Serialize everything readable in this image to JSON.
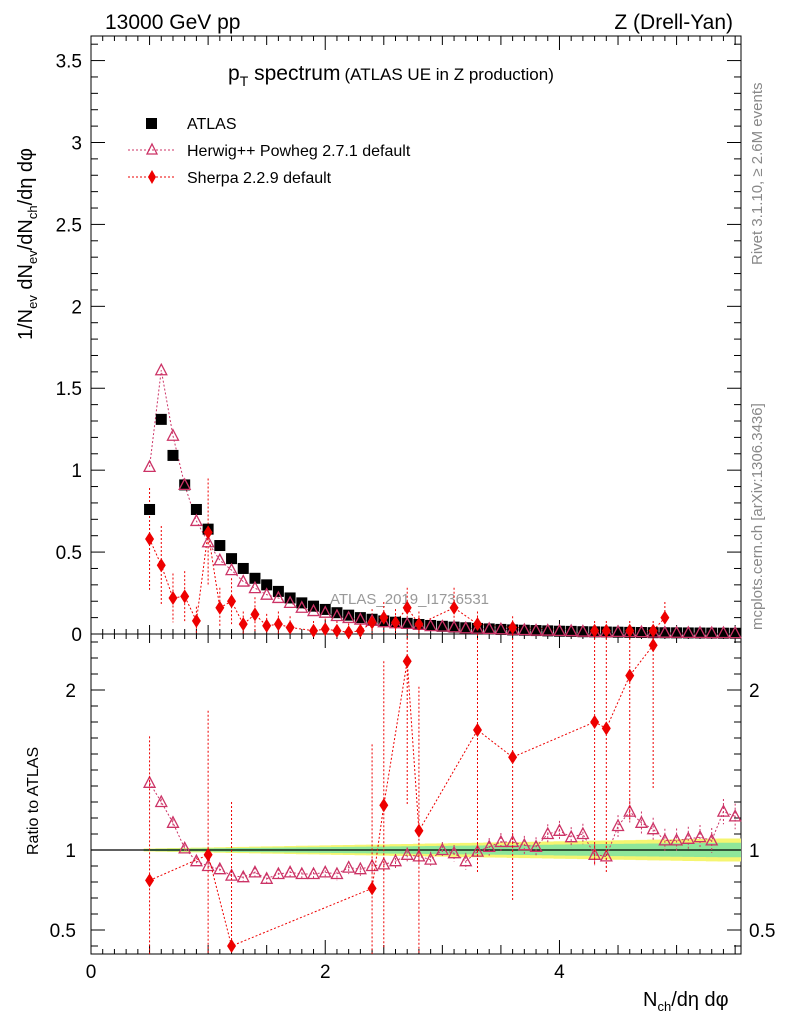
{
  "header": {
    "left": "13000 GeV pp",
    "right": "Z (Drell-Yan)"
  },
  "title": {
    "main": "p",
    "main_sub": "T",
    "main_rest": " spectrum",
    "suffix": "(ATLAS UE in Z production)"
  },
  "side_labels": {
    "rivet": "Rivet 3.1.10, ≥ 2.6M events",
    "mcplots": "mcplots.cern.ch [arXiv:1306.3436]"
  },
  "watermark": "ATLAS_2019_I1736531",
  "axes": {
    "xlabel_main": "N",
    "xlabel_sub": "ch",
    "xlabel_rest": "/dη dφ",
    "ylabel_top_parts": [
      "1/N",
      "ev",
      " dN",
      "ev",
      "/dN",
      "ch",
      "/dη dφ"
    ],
    "ylabel_bottom": "Ratio to ATLAS",
    "x_ticks": [
      "0",
      "2",
      "4"
    ],
    "y_ticks_top": [
      "0",
      "0.5",
      "1",
      "1.5",
      "2",
      "2.5",
      "3",
      "3.5"
    ],
    "y_ticks_bottom": [
      "0.5",
      "1",
      "2"
    ]
  },
  "legend": [
    {
      "label": "ATLAS",
      "color": "#000000",
      "marker": "square"
    },
    {
      "label": "Herwig++ Powheg 2.7.1 default",
      "color": "#cc3366",
      "marker": "open-triangle"
    },
    {
      "label": "Sherpa 2.2.9 default",
      "color": "#ee0000",
      "marker": "diamond"
    }
  ],
  "chart_data": [
    {
      "type": "scatter",
      "panel": "main",
      "xlim": [
        0,
        5.55
      ],
      "ylim": [
        0,
        3.65
      ],
      "series": [
        {
          "name": "ATLAS",
          "x": [
            0.5,
            0.6,
            0.7,
            0.8,
            0.9,
            1.0,
            1.1,
            1.2,
            1.3,
            1.4,
            1.5,
            1.6,
            1.7,
            1.8,
            1.9,
            2.0,
            2.1,
            2.2,
            2.3,
            2.4,
            2.5,
            2.6,
            2.7,
            2.8,
            2.9,
            3.0,
            3.1,
            3.2,
            3.3,
            3.4,
            3.5,
            3.6,
            3.7,
            3.8,
            3.9,
            4.0,
            4.1,
            4.2,
            4.3,
            4.4,
            4.5,
            4.6,
            4.7,
            4.8,
            4.9,
            5.0,
            5.1,
            5.2,
            5.3,
            5.4,
            5.5
          ],
          "y": [
            0.76,
            1.31,
            1.09,
            0.91,
            0.76,
            0.64,
            0.54,
            0.46,
            0.4,
            0.34,
            0.3,
            0.26,
            0.22,
            0.19,
            0.17,
            0.15,
            0.13,
            0.115,
            0.1,
            0.09,
            0.08,
            0.072,
            0.065,
            0.058,
            0.052,
            0.047,
            0.042,
            0.038,
            0.034,
            0.031,
            0.028,
            0.025,
            0.023,
            0.021,
            0.019,
            0.017,
            0.016,
            0.014,
            0.013,
            0.012,
            0.011,
            0.01,
            0.009,
            0.008,
            0.0075,
            0.007,
            0.0065,
            0.006,
            0.0055,
            0.005,
            0.0045
          ]
        },
        {
          "name": "Herwig++ Powheg 2.7.1 default",
          "x": [
            0.5,
            0.6,
            0.7,
            0.8,
            0.9,
            1.0,
            1.1,
            1.2,
            1.3,
            1.4,
            1.5,
            1.6,
            1.7,
            1.8,
            1.9,
            2.0,
            2.1,
            2.2,
            2.3,
            2.4,
            2.5,
            2.6,
            2.7,
            2.8,
            2.9,
            3.0,
            3.1,
            3.2,
            3.3,
            3.4,
            3.5,
            3.6,
            3.7,
            3.8,
            3.9,
            4.0,
            4.1,
            4.2,
            4.3,
            4.4,
            4.5,
            4.6,
            4.7,
            4.8,
            4.9,
            5.0,
            5.1,
            5.2,
            5.3,
            5.4,
            5.5
          ],
          "y": [
            1.02,
            1.61,
            1.21,
            0.91,
            0.69,
            0.56,
            0.45,
            0.39,
            0.32,
            0.28,
            0.24,
            0.22,
            0.19,
            0.16,
            0.14,
            0.13,
            0.11,
            0.098,
            0.088,
            0.08,
            0.072,
            0.066,
            0.062,
            0.056,
            0.048,
            0.046,
            0.041,
            0.035,
            0.033,
            0.031,
            0.029,
            0.026,
            0.024,
            0.021,
            0.021,
            0.019,
            0.018,
            0.015,
            0.012,
            0.011,
            0.013,
            0.012,
            0.011,
            0.009,
            0.008,
            0.0075,
            0.007,
            0.0065,
            0.0058,
            0.0062,
            0.0055
          ]
        },
        {
          "name": "Sherpa 2.2.9 default",
          "x": [
            0.5,
            0.6,
            0.7,
            0.8,
            0.9,
            1.0,
            1.1,
            1.2,
            1.3,
            1.4,
            1.5,
            1.6,
            1.7,
            1.9,
            2.0,
            2.1,
            2.2,
            2.3,
            2.4,
            2.5,
            2.6,
            2.7,
            2.8,
            3.1,
            3.3,
            3.6,
            4.3,
            4.4,
            4.6,
            4.8,
            4.9
          ],
          "y": [
            0.58,
            0.42,
            0.22,
            0.23,
            0.08,
            0.62,
            0.16,
            0.2,
            0.06,
            0.12,
            0.05,
            0.06,
            0.04,
            0.02,
            0.03,
            0.02,
            0.01,
            0.02,
            0.07,
            0.1,
            0.07,
            0.16,
            0.06,
            0.16,
            0.06,
            0.04,
            0.02,
            0.02,
            0.02,
            0.02,
            0.1
          ]
        }
      ]
    },
    {
      "type": "scatter",
      "panel": "ratio",
      "ylabel": "Ratio to ATLAS",
      "xlim": [
        0,
        5.55
      ],
      "ylim": [
        0.35,
        2.35
      ],
      "series": [
        {
          "name": "Herwig++ Powheg 2.7.1 default",
          "x": [
            0.5,
            0.6,
            0.7,
            0.8,
            0.9,
            1.0,
            1.1,
            1.2,
            1.3,
            1.4,
            1.5,
            1.6,
            1.7,
            1.8,
            1.9,
            2.0,
            2.1,
            2.2,
            2.3,
            2.4,
            2.5,
            2.6,
            2.7,
            2.8,
            2.9,
            3.0,
            3.1,
            3.2,
            3.3,
            3.4,
            3.5,
            3.6,
            3.7,
            3.8,
            3.9,
            4.0,
            4.1,
            4.2,
            4.3,
            4.4,
            4.5,
            4.6,
            4.7,
            4.8,
            4.9,
            5.0,
            5.1,
            5.2,
            5.3,
            5.4,
            5.5
          ],
          "y": [
            1.42,
            1.3,
            1.17,
            1.01,
            0.93,
            0.9,
            0.88,
            0.84,
            0.83,
            0.86,
            0.82,
            0.85,
            0.86,
            0.85,
            0.85,
            0.86,
            0.85,
            0.89,
            0.88,
            0.9,
            0.91,
            0.93,
            0.97,
            0.96,
            0.94,
            1.0,
            0.98,
            0.93,
            0.99,
            1.02,
            1.05,
            1.05,
            1.03,
            1.02,
            1.1,
            1.12,
            1.08,
            1.1,
            0.97,
            0.96,
            1.15,
            1.24,
            1.17,
            1.13,
            1.06,
            1.06,
            1.07,
            1.08,
            1.06,
            1.24,
            1.21
          ]
        },
        {
          "name": "Sherpa 2.2.9 default",
          "x": [
            0.5,
            1.0,
            1.2,
            2.4,
            2.5,
            2.7,
            2.8,
            3.3,
            3.6,
            4.3,
            4.4,
            4.6,
            4.8
          ],
          "y": [
            0.81,
            0.97,
            0.4,
            0.76,
            1.28,
            2.18,
            1.12,
            1.75,
            1.58,
            1.8,
            1.76,
            2.09,
            2.28
          ]
        }
      ]
    }
  ]
}
